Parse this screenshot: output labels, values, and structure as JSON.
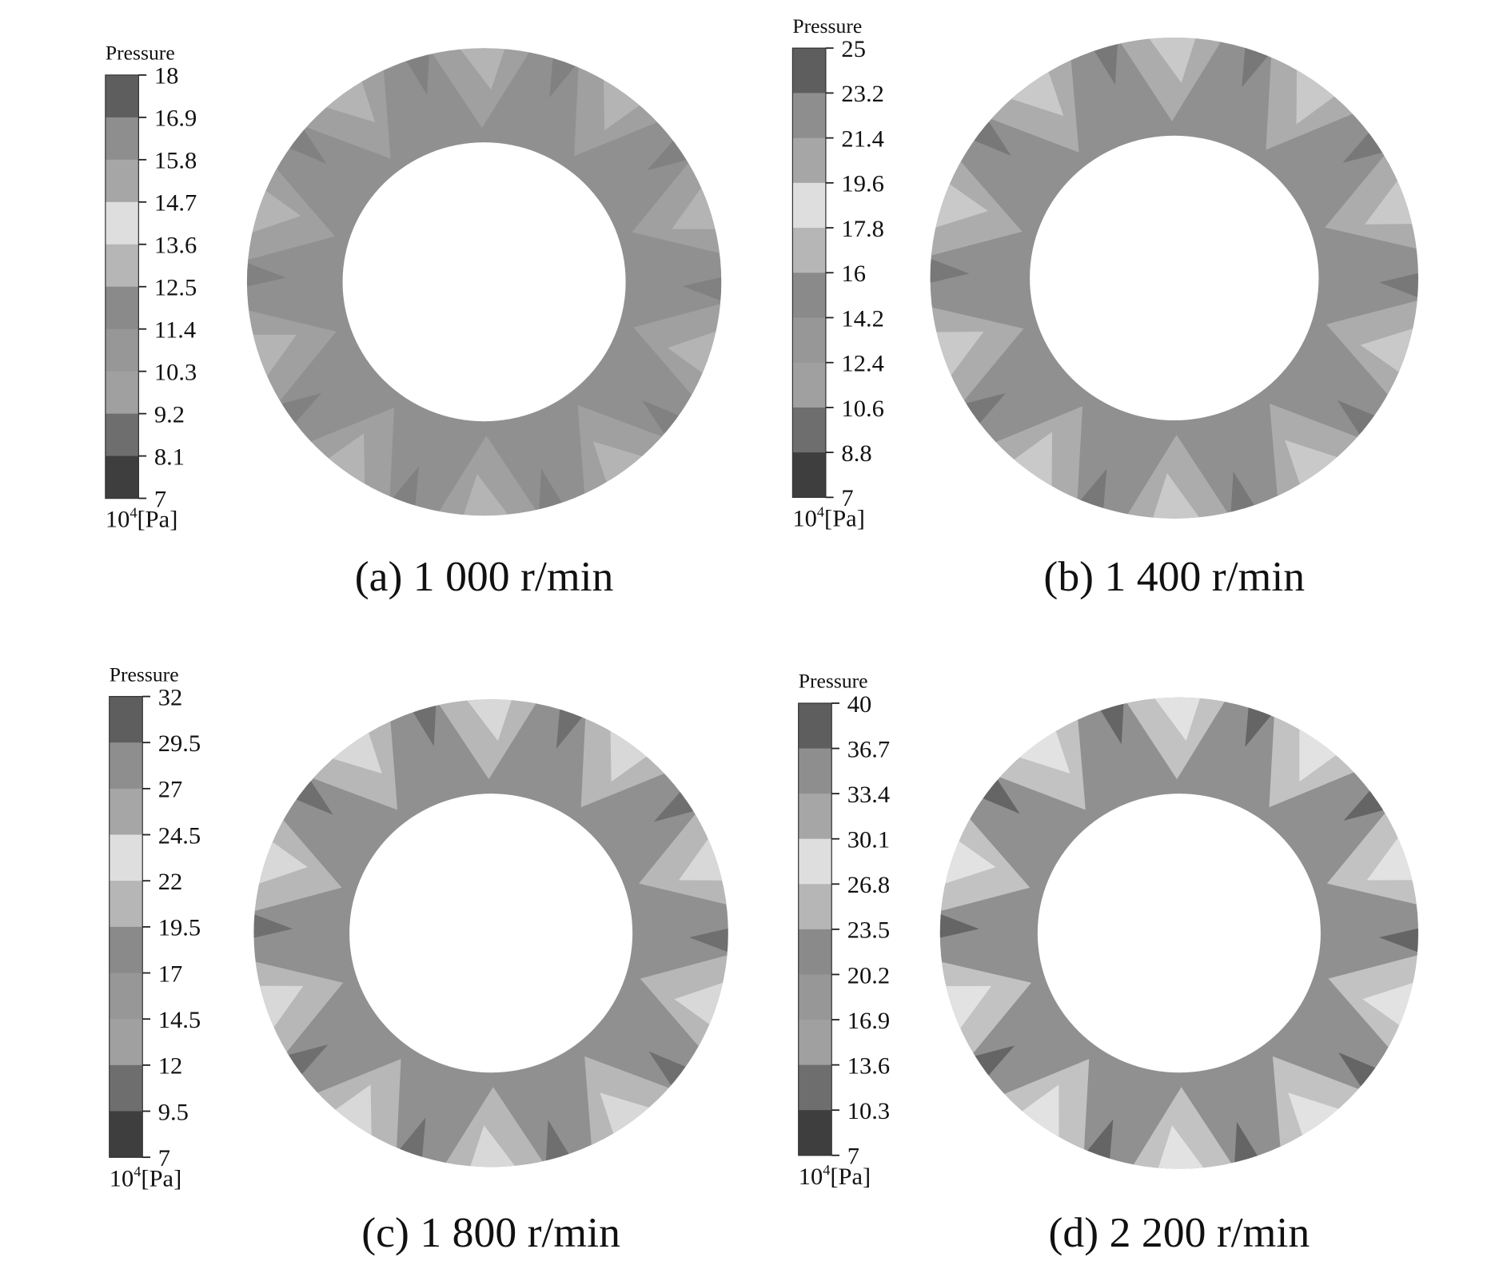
{
  "panels": [
    {
      "legend_title": "Pressure",
      "ticks": [
        18,
        16.9,
        15.8,
        14.7,
        13.6,
        12.5,
        11.4,
        10.3,
        9.2,
        8.1,
        7
      ],
      "unit_base": "10",
      "unit_exp": "4",
      "unit_rest": "[Pa]",
      "caption": "(a) 1 000 r/min"
    },
    {
      "legend_title": "Pressure",
      "ticks": [
        25,
        23.2,
        21.4,
        19.6,
        17.8,
        16,
        14.2,
        12.4,
        10.6,
        8.8,
        7
      ],
      "unit_base": "10",
      "unit_exp": "4",
      "unit_rest": "[Pa]",
      "caption": "(b) 1 400 r/min"
    },
    {
      "legend_title": "Pressure",
      "ticks": [
        32,
        29.5,
        27,
        24.5,
        22,
        19.5,
        17,
        14.5,
        12,
        9.5,
        7
      ],
      "unit_base": "10",
      "unit_exp": "4",
      "unit_rest": "[Pa]",
      "caption": "(c) 1 800 r/min"
    },
    {
      "legend_title": "Pressure",
      "ticks": [
        40,
        36.7,
        33.4,
        30.1,
        26.8,
        23.5,
        20.2,
        16.9,
        13.6,
        10.3,
        7
      ],
      "unit_base": "10",
      "unit_exp": "4",
      "unit_rest": "[Pa]",
      "caption": "(d) 2 200 r/min"
    }
  ]
}
